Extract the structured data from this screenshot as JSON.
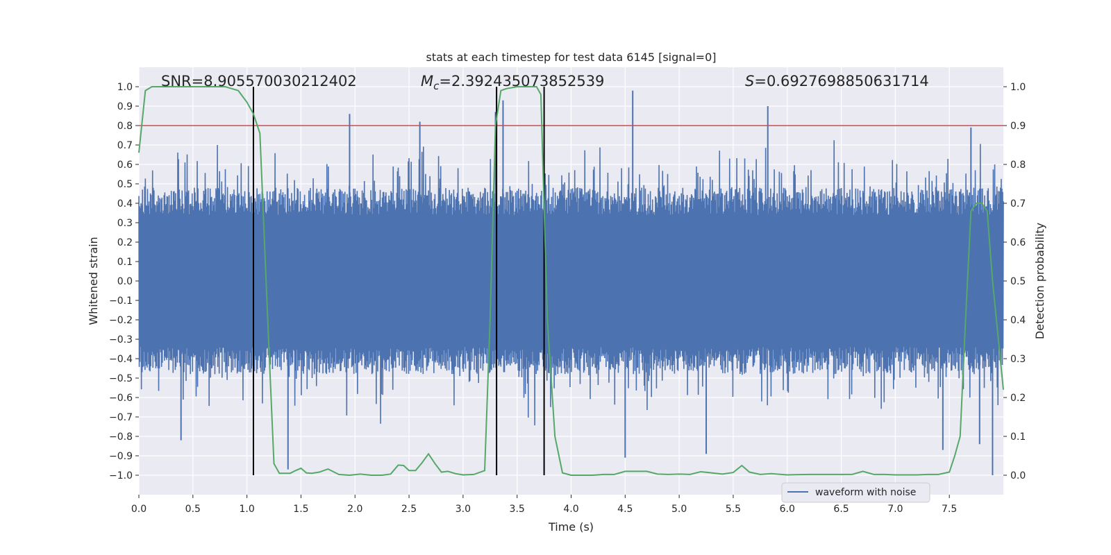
{
  "chart_data": {
    "type": "line",
    "title": "stats at each timestep for test data 6145 [signal=0]",
    "xlabel": "Time (s)",
    "ylabel_left": "Whitened strain",
    "ylabel_right": "Detection probability",
    "xlim": [
      0.0,
      8.0
    ],
    "ylim_left": [
      -1.1,
      1.1
    ],
    "ylim_right": [
      -0.05,
      1.05
    ],
    "x_ticks": [
      "0.0",
      "0.5",
      "1.0",
      "1.5",
      "2.0",
      "2.5",
      "3.0",
      "3.5",
      "4.0",
      "4.5",
      "5.0",
      "5.5",
      "6.0",
      "6.5",
      "7.0",
      "7.5"
    ],
    "x_tick_values": [
      0.0,
      0.5,
      1.0,
      1.5,
      2.0,
      2.5,
      3.0,
      3.5,
      4.0,
      4.5,
      5.0,
      5.5,
      6.0,
      6.5,
      7.0,
      7.5
    ],
    "y_left_ticks": [
      "1.0",
      "0.9",
      "0.8",
      "0.7",
      "0.6",
      "0.5",
      "0.4",
      "0.3",
      "0.2",
      "0.1",
      "0.0",
      "−0.1",
      "−0.2",
      "−0.3",
      "−0.4",
      "−0.5",
      "−0.6",
      "−0.7",
      "−0.8",
      "−0.9",
      "−1.0"
    ],
    "y_left_tick_values": [
      1.0,
      0.9,
      0.8,
      0.7,
      0.6,
      0.5,
      0.4,
      0.3,
      0.2,
      0.1,
      0.0,
      -0.1,
      -0.2,
      -0.3,
      -0.4,
      -0.5,
      -0.6,
      -0.7,
      -0.8,
      -0.9,
      -1.0
    ],
    "y_right_ticks": [
      "1.0",
      "0.9",
      "0.8",
      "0.7",
      "0.6",
      "0.5",
      "0.4",
      "0.3",
      "0.2",
      "0.1",
      "0.0"
    ],
    "y_right_tick_values": [
      1.0,
      0.9,
      0.8,
      0.7,
      0.6,
      0.5,
      0.4,
      0.3,
      0.2,
      0.1,
      0.0
    ],
    "annotations": {
      "snr": "SNR=8.905570030212402",
      "mc_symbol": "M",
      "mc_sub": "c",
      "mc_value": "=2.392435073852539",
      "s_symbol": "S",
      "s_value": "=0.6927698850631714"
    },
    "waveform": {
      "name": "waveform with noise",
      "color": "#4c72b0",
      "note": "dense whitened-strain noise trace; envelope approx ±0.4 to ±0.6 with spikes up to ~0.98",
      "spikes": [
        {
          "x": 0.39,
          "y": -0.82
        },
        {
          "x": 1.38,
          "y": -0.97
        },
        {
          "x": 1.95,
          "y": 0.86
        },
        {
          "x": 2.6,
          "y": 0.82
        },
        {
          "x": 3.3,
          "y": 0.87
        },
        {
          "x": 3.37,
          "y": 0.93
        },
        {
          "x": 4.57,
          "y": 0.98
        },
        {
          "x": 4.5,
          "y": -0.91
        },
        {
          "x": 5.25,
          "y": -0.89
        },
        {
          "x": 5.82,
          "y": 0.9
        },
        {
          "x": 7.44,
          "y": -0.87
        },
        {
          "x": 7.78,
          "y": -0.84
        },
        {
          "x": 7.9,
          "y": -1.0
        },
        {
          "x": 7.7,
          "y": 0.79
        }
      ]
    },
    "detection_probability": {
      "color": "#55a868",
      "x": [
        0.0,
        0.06,
        0.12,
        0.2,
        0.3,
        0.4,
        0.5,
        0.6,
        0.7,
        0.8,
        0.92,
        1.0,
        1.06,
        1.12,
        1.2,
        1.25,
        1.3,
        1.35,
        1.4,
        1.45,
        1.5,
        1.55,
        1.6,
        1.67,
        1.75,
        1.85,
        1.95,
        2.05,
        2.15,
        2.25,
        2.33,
        2.4,
        2.45,
        2.5,
        2.56,
        2.62,
        2.68,
        2.74,
        2.8,
        2.86,
        2.93,
        3.0,
        3.1,
        3.2,
        3.25,
        3.3,
        3.35,
        3.4,
        3.5,
        3.6,
        3.68,
        3.72,
        3.78,
        3.85,
        3.92,
        4.0,
        4.1,
        4.2,
        4.3,
        4.4,
        4.5,
        4.6,
        4.7,
        4.8,
        4.9,
        5.0,
        5.1,
        5.2,
        5.3,
        5.4,
        5.5,
        5.58,
        5.65,
        5.75,
        5.85,
        6.0,
        6.2,
        6.4,
        6.6,
        6.7,
        6.8,
        6.9,
        7.0,
        7.1,
        7.2,
        7.3,
        7.4,
        7.5,
        7.55,
        7.6,
        7.65,
        7.7,
        7.75,
        7.8,
        7.85,
        7.9,
        8.0
      ],
      "y": [
        0.83,
        0.99,
        1.0,
        1.0,
        1.0,
        1.0,
        1.0,
        1.0,
        1.0,
        1.0,
        0.99,
        0.96,
        0.93,
        0.88,
        0.35,
        0.03,
        0.005,
        0.005,
        0.005,
        0.012,
        0.018,
        0.006,
        0.005,
        0.008,
        0.016,
        0.002,
        0.0,
        0.003,
        0.0,
        0.0,
        0.003,
        0.026,
        0.025,
        0.012,
        0.012,
        0.032,
        0.055,
        0.03,
        0.008,
        0.01,
        0.004,
        0.001,
        0.002,
        0.012,
        0.4,
        0.9,
        0.99,
        0.995,
        1.0,
        1.0,
        1.0,
        0.98,
        0.4,
        0.1,
        0.006,
        0.0,
        0.0,
        0.0,
        0.002,
        0.002,
        0.01,
        0.01,
        0.01,
        0.003,
        0.002,
        0.003,
        0.002,
        0.009,
        0.006,
        0.003,
        0.007,
        0.025,
        0.008,
        0.002,
        0.004,
        0.001,
        0.002,
        0.002,
        0.002,
        0.01,
        0.002,
        0.002,
        0.001,
        0.001,
        0.001,
        0.002,
        0.002,
        0.008,
        0.05,
        0.1,
        0.4,
        0.68,
        0.7,
        0.7,
        0.68,
        0.5,
        0.22
      ]
    },
    "threshold": {
      "color": "#c44e52",
      "value_right": 0.9
    },
    "vertical_lines": {
      "color": "#000000",
      "x": [
        1.06,
        3.31,
        3.75
      ],
      "y_range_left": [
        -1.0,
        1.0
      ]
    },
    "legend": {
      "placement": "lower-right",
      "entries": [
        "waveform with noise"
      ]
    },
    "grid": true
  }
}
